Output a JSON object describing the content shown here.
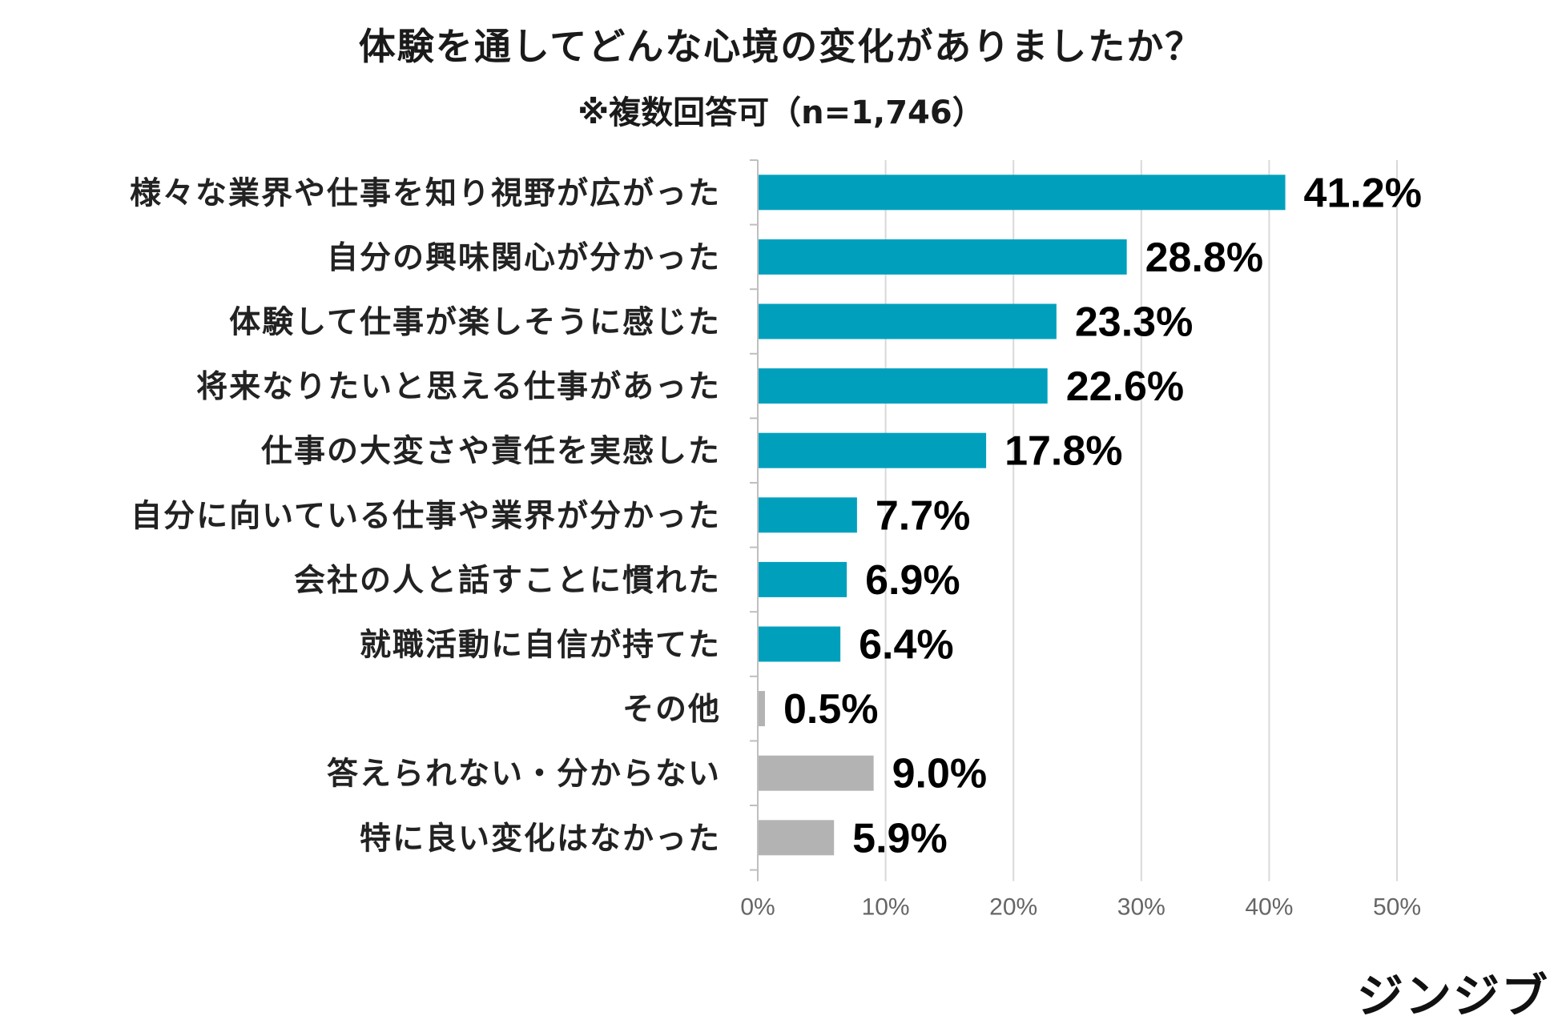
{
  "chart_data": {
    "type": "bar",
    "orientation": "horizontal",
    "title": "体験を通してどんな心境の変化がありましたか？",
    "subtitle": "※複数回答可（n=1,746）",
    "unit": "%",
    "xlim": [
      0,
      50
    ],
    "xticks": [
      0,
      10,
      20,
      30,
      40,
      50
    ],
    "xtick_labels": [
      "0%",
      "10%",
      "20%",
      "30%",
      "40%",
      "50%"
    ],
    "grid": true,
    "categories": [
      "様々な業界や仕事を知り視野が広がった",
      "自分の興味関心が分かった",
      "体験して仕事が楽しそうに感じた",
      "将来なりたいと思える仕事があった",
      "仕事の大変さや責任を実感した",
      "自分に向いている仕事や業界が分かった",
      "会社の人と話すことに慣れた",
      "就職活動に自信が持てた",
      "その他",
      "答えられない・分からない",
      "特に良い変化はなかった"
    ],
    "values": [
      41.2,
      28.8,
      23.3,
      22.6,
      17.8,
      7.7,
      6.9,
      6.4,
      0.5,
      9.0,
      5.9
    ],
    "value_labels": [
      "41.2%",
      "28.8%",
      "23.3%",
      "22.6%",
      "17.8%",
      "7.7%",
      "6.9%",
      "6.4%",
      "0.5%",
      "9.0%",
      "5.9%"
    ],
    "bar_colors": [
      "#00a0bd",
      "#00a0bd",
      "#00a0bd",
      "#00a0bd",
      "#00a0bd",
      "#00a0bd",
      "#00a0bd",
      "#00a0bd",
      "#b3b3b3",
      "#b3b3b3",
      "#b3b3b3"
    ],
    "grid_color": "#d9d9d9",
    "axis_color": "#bfbfbf"
  },
  "brand": "ジンジブ"
}
